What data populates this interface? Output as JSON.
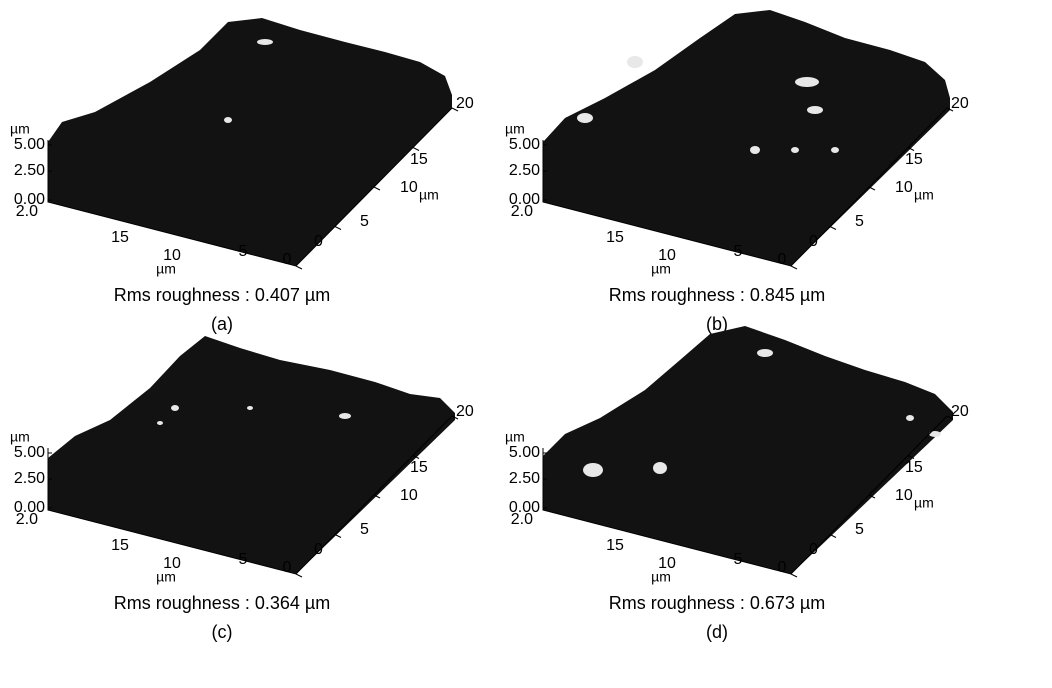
{
  "panels": [
    {
      "z_unit": "µm",
      "z_ticks": [
        "5.00",
        "2.50",
        "0.00"
      ],
      "x_corner": "2.0",
      "x_ticks": [
        "15",
        "10",
        "5",
        "0"
      ],
      "x_unit": "µm",
      "y_ticks": [
        "0",
        "5",
        "10",
        "15",
        "20"
      ],
      "y_unit": "µm",
      "caption": "Rms roughness : 0.407 µm",
      "label": "(a)"
    },
    {
      "z_unit": "µm",
      "z_ticks": [
        "5.00",
        "2.50",
        "0.00"
      ],
      "x_corner": "2.0",
      "x_ticks": [
        "15",
        "10",
        "5",
        "0"
      ],
      "x_unit": "µm",
      "y_ticks": [
        "0",
        "5",
        "10",
        "15",
        "20"
      ],
      "y_unit": "µm",
      "caption": "Rms roughness : 0.845 µm",
      "label": "(b)"
    },
    {
      "z_unit": "µm",
      "z_ticks": [
        "5.00",
        "2.50",
        "0.00"
      ],
      "x_corner": "2.0",
      "x_ticks": [
        "15",
        "10",
        "5",
        "0"
      ],
      "x_unit": "µm",
      "y_ticks": [
        "0",
        "5",
        "10",
        "15",
        "20"
      ],
      "caption": "Rms roughness : 0.364 µm",
      "label": "(c)"
    },
    {
      "z_unit": "µm",
      "z_ticks": [
        "5.00",
        "2.50",
        "0.00"
      ],
      "x_corner": "2.0",
      "x_ticks": [
        "15",
        "10",
        "5",
        "0"
      ],
      "x_unit": "µm",
      "y_ticks": [
        "0",
        "5",
        "10",
        "15",
        "20"
      ],
      "y_unit": "µm",
      "caption": "Rms roughness : 0.673 µm",
      "label": "(d)"
    }
  ]
}
